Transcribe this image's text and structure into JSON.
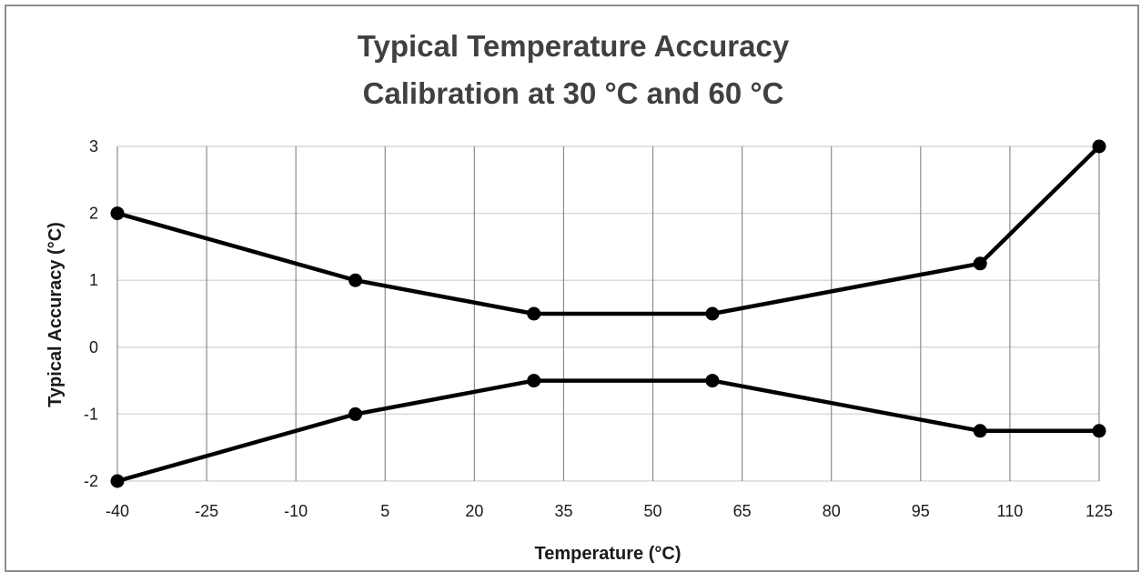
{
  "chart_data": {
    "type": "line",
    "title": "Typical Temperature Accuracy",
    "subtitle": "Calibration at 30 °C and 60 °C",
    "xlabel": "Temperature (°C)",
    "ylabel": "Typical Accuracy (°C)",
    "xlim": [
      -40,
      125
    ],
    "ylim": [
      -2,
      3
    ],
    "x_ticks": [
      -40,
      -25,
      -10,
      5,
      20,
      35,
      50,
      65,
      80,
      95,
      110,
      125
    ],
    "y_ticks": [
      -2,
      -1,
      0,
      1,
      2,
      3
    ],
    "grid": true,
    "legend": "none",
    "series": [
      {
        "x": [
          -40,
          0,
          30,
          60,
          105,
          125
        ],
        "values": [
          2,
          1,
          0.5,
          0.5,
          1.25,
          3
        ]
      },
      {
        "x": [
          -40,
          0,
          30,
          60,
          105,
          125
        ],
        "values": [
          -2,
          -1,
          -0.5,
          -0.5,
          -1.25,
          -1.25
        ]
      }
    ],
    "colors": {
      "line": "#000000",
      "grid_vertical": "#8c8c8c",
      "grid_horizontal": "#d9d9d9",
      "title": "#404040"
    }
  }
}
